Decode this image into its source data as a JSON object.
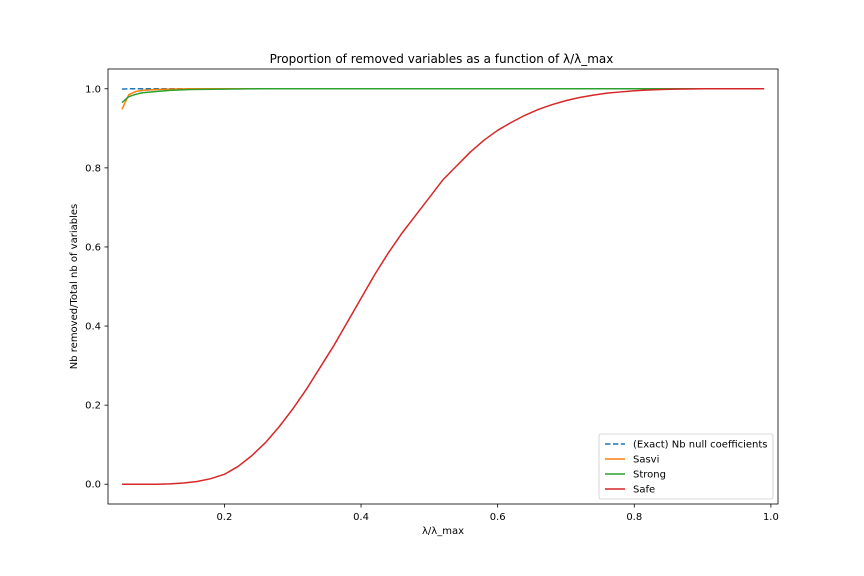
{
  "chart_data": {
    "type": "line",
    "title": "Proportion of removed variables as a function of λ/λ_max",
    "xlabel": "λ/λ_max",
    "ylabel": "Nb removed/Total nb of variables",
    "xlim": [
      0.0296,
      1.0104
    ],
    "ylim": [
      -0.05,
      1.05
    ],
    "xticks": [
      0.2,
      0.4,
      0.6,
      0.8,
      1.0
    ],
    "yticks": [
      0.0,
      0.2,
      0.4,
      0.6,
      0.8,
      1.0
    ],
    "xtick_labels": [
      "0.2",
      "0.4",
      "0.6",
      "0.8",
      "1.0"
    ],
    "ytick_labels": [
      "0.0",
      "0.2",
      "0.4",
      "0.6",
      "0.8",
      "1.0"
    ],
    "grid": false,
    "legend_position": "lower-right",
    "series": [
      {
        "name": "(Exact) Nb null coefficients",
        "color": "#1f77b4",
        "dash": true,
        "x": [
          0.05,
          0.06,
          0.08,
          0.1,
          0.15,
          0.2,
          0.3,
          0.5,
          0.7,
          0.9,
          0.99
        ],
        "y": [
          0.999,
          1.0,
          1.0,
          1.0,
          1.0,
          1.0,
          1.0,
          1.0,
          1.0,
          1.0,
          1.0
        ]
      },
      {
        "name": "Sasvi",
        "color": "#ff7f0e",
        "dash": false,
        "x": [
          0.05,
          0.06,
          0.07,
          0.08,
          0.1,
          0.12,
          0.15,
          0.2,
          0.3,
          0.5,
          0.7,
          0.9,
          0.99
        ],
        "y": [
          0.948,
          0.985,
          0.993,
          0.996,
          0.998,
          0.999,
          1.0,
          1.0,
          1.0,
          1.0,
          1.0,
          1.0,
          1.0
        ]
      },
      {
        "name": "Strong",
        "color": "#2ca02c",
        "dash": false,
        "x": [
          0.05,
          0.06,
          0.07,
          0.08,
          0.1,
          0.12,
          0.15,
          0.2,
          0.25,
          0.3,
          0.5,
          0.7,
          0.9,
          0.99
        ],
        "y": [
          0.965,
          0.98,
          0.986,
          0.99,
          0.993,
          0.996,
          0.998,
          0.999,
          1.0,
          1.0,
          1.0,
          1.0,
          1.0,
          1.0
        ]
      },
      {
        "name": "Safe",
        "color": "#d62728",
        "dash": false,
        "x": [
          0.05,
          0.1,
          0.12,
          0.14,
          0.16,
          0.18,
          0.2,
          0.22,
          0.24,
          0.26,
          0.28,
          0.3,
          0.32,
          0.34,
          0.36,
          0.38,
          0.4,
          0.42,
          0.44,
          0.46,
          0.48,
          0.5,
          0.52,
          0.54,
          0.56,
          0.58,
          0.6,
          0.62,
          0.64,
          0.66,
          0.68,
          0.7,
          0.72,
          0.74,
          0.76,
          0.78,
          0.8,
          0.82,
          0.84,
          0.86,
          0.88,
          0.9,
          0.95,
          0.99
        ],
        "y": [
          0.0,
          0.0,
          0.001,
          0.003,
          0.007,
          0.014,
          0.025,
          0.045,
          0.072,
          0.105,
          0.145,
          0.19,
          0.24,
          0.295,
          0.35,
          0.41,
          0.47,
          0.53,
          0.585,
          0.635,
          0.68,
          0.725,
          0.77,
          0.805,
          0.84,
          0.87,
          0.895,
          0.915,
          0.933,
          0.948,
          0.96,
          0.97,
          0.978,
          0.984,
          0.989,
          0.992,
          0.995,
          0.997,
          0.998,
          0.999,
          0.9995,
          1.0,
          1.0,
          1.0
        ]
      }
    ]
  }
}
